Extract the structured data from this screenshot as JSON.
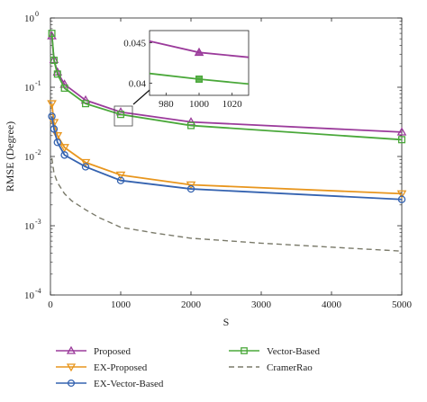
{
  "chart_data": {
    "type": "line",
    "title": "",
    "xlabel": "S",
    "ylabel": "RMSE (Degree)",
    "yscale": "log",
    "xlim": [
      0,
      5000
    ],
    "ylim": [
      0.0001,
      1
    ],
    "x_ticks": [
      0,
      1000,
      2000,
      3000,
      4000,
      5000
    ],
    "x_tick_labels": [
      "0",
      "1000",
      "2000",
      "3000",
      "4000",
      "5000"
    ],
    "y_ticks": [
      0.0001,
      0.001,
      0.01,
      0.1,
      1
    ],
    "y_tick_labels": [
      "10",
      "10",
      "10",
      "10",
      "10"
    ],
    "y_tick_exponents": [
      "-4",
      "-3",
      "-2",
      "-1",
      "0"
    ],
    "grid": false,
    "legend_position": "bottom",
    "series": [
      {
        "name": "Proposed",
        "color": "#9b3b9b",
        "marker": "triangle-up",
        "dash": "solid",
        "x": [
          20,
          50,
          100,
          200,
          500,
          1000,
          2000,
          5000
        ],
        "y": [
          0.55,
          0.25,
          0.165,
          0.11,
          0.065,
          0.0438,
          0.0315,
          0.0225
        ]
      },
      {
        "name": "EX-Proposed",
        "color": "#e8961e",
        "marker": "triangle-down",
        "dash": "solid",
        "x": [
          20,
          50,
          100,
          200,
          500,
          1000,
          2000,
          5000
        ],
        "y": [
          0.058,
          0.031,
          0.02,
          0.0135,
          0.0082,
          0.0054,
          0.0039,
          0.0029
        ]
      },
      {
        "name": "EX-Vector-Based",
        "color": "#3563b0",
        "marker": "circle",
        "dash": "solid",
        "x": [
          20,
          50,
          100,
          200,
          500,
          1000,
          2000,
          5000
        ],
        "y": [
          0.038,
          0.025,
          0.016,
          0.0105,
          0.0071,
          0.0045,
          0.0034,
          0.0024
        ]
      },
      {
        "name": "Vector-Based",
        "color": "#4aa83a",
        "marker": "square",
        "dash": "solid",
        "x": [
          20,
          50,
          100,
          200,
          500,
          1000,
          2000,
          5000
        ],
        "y": [
          0.6,
          0.245,
          0.155,
          0.097,
          0.058,
          0.0405,
          0.028,
          0.0175
        ]
      },
      {
        "name": "CramerRao",
        "color": "#7a7a6a",
        "marker": "none",
        "dash": "dashed",
        "x": [
          20,
          50,
          100,
          200,
          300,
          500,
          700,
          1000,
          1500,
          2000,
          3000,
          4000,
          5000
        ],
        "y": [
          0.0095,
          0.0058,
          0.0042,
          0.0029,
          0.0023,
          0.0017,
          0.0013,
          0.00095,
          0.00078,
          0.00066,
          0.00056,
          0.00049,
          0.00043
        ]
      }
    ],
    "inset": {
      "xlim": [
        970,
        1030
      ],
      "ylim": [
        0.0385,
        0.0465
      ],
      "x_tick_labels": [
        "980",
        "1000",
        "1020"
      ],
      "x_ticks": [
        980,
        1000,
        1020
      ],
      "y_tick_labels": [
        "0.045",
        "0.04"
      ],
      "y_ticks": [
        0.045,
        0.04
      ],
      "series": [
        {
          "name": "Proposed",
          "color": "#9b3b9b",
          "marker": "triangle-up",
          "x": [
            970,
            1000,
            1030
          ],
          "y": [
            0.0452,
            0.0438,
            0.0432
          ],
          "marker_x": 1000
        },
        {
          "name": "Vector-Based",
          "color": "#4aa83a",
          "marker": "square",
          "x": [
            970,
            1000,
            1030
          ],
          "y": [
            0.0412,
            0.0405,
            0.0399
          ],
          "marker_x": 1000
        }
      ]
    }
  }
}
